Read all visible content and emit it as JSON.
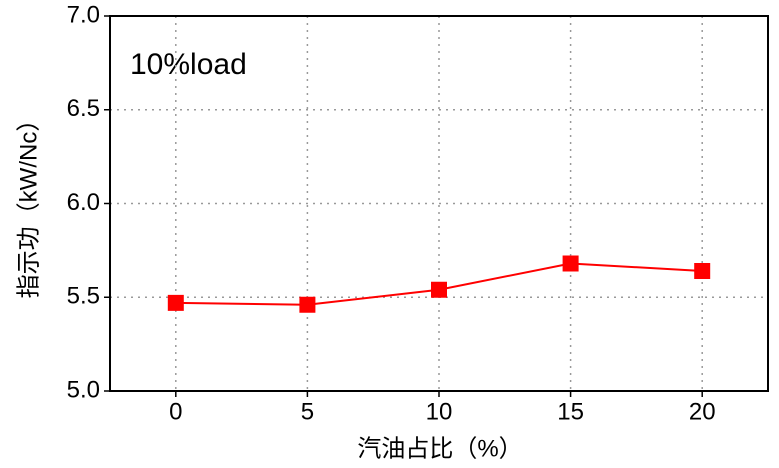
{
  "chart_data": {
    "type": "line",
    "annotation": "10%load",
    "x_label": "汽油占比（%）",
    "y_label": "指示功（kW/Nc）",
    "x": [
      0,
      5,
      10,
      15,
      20
    ],
    "series": [
      {
        "color": "#ff0000",
        "values": [
          5.47,
          5.46,
          5.54,
          5.68,
          5.64
        ]
      }
    ],
    "xlim": [
      -2.5,
      22.5
    ],
    "ylim": [
      5.0,
      7.0
    ],
    "xticks": [
      0,
      5,
      10,
      15,
      20
    ],
    "yticks": [
      {
        "value": 5.0,
        "label": "5.0"
      },
      {
        "value": 5.5,
        "label": "5.5"
      },
      {
        "value": 6.0,
        "label": "6.0"
      },
      {
        "value": 6.5,
        "label": "6.5"
      },
      {
        "value": 7.0,
        "label": "7.0"
      }
    ],
    "grid": true
  }
}
